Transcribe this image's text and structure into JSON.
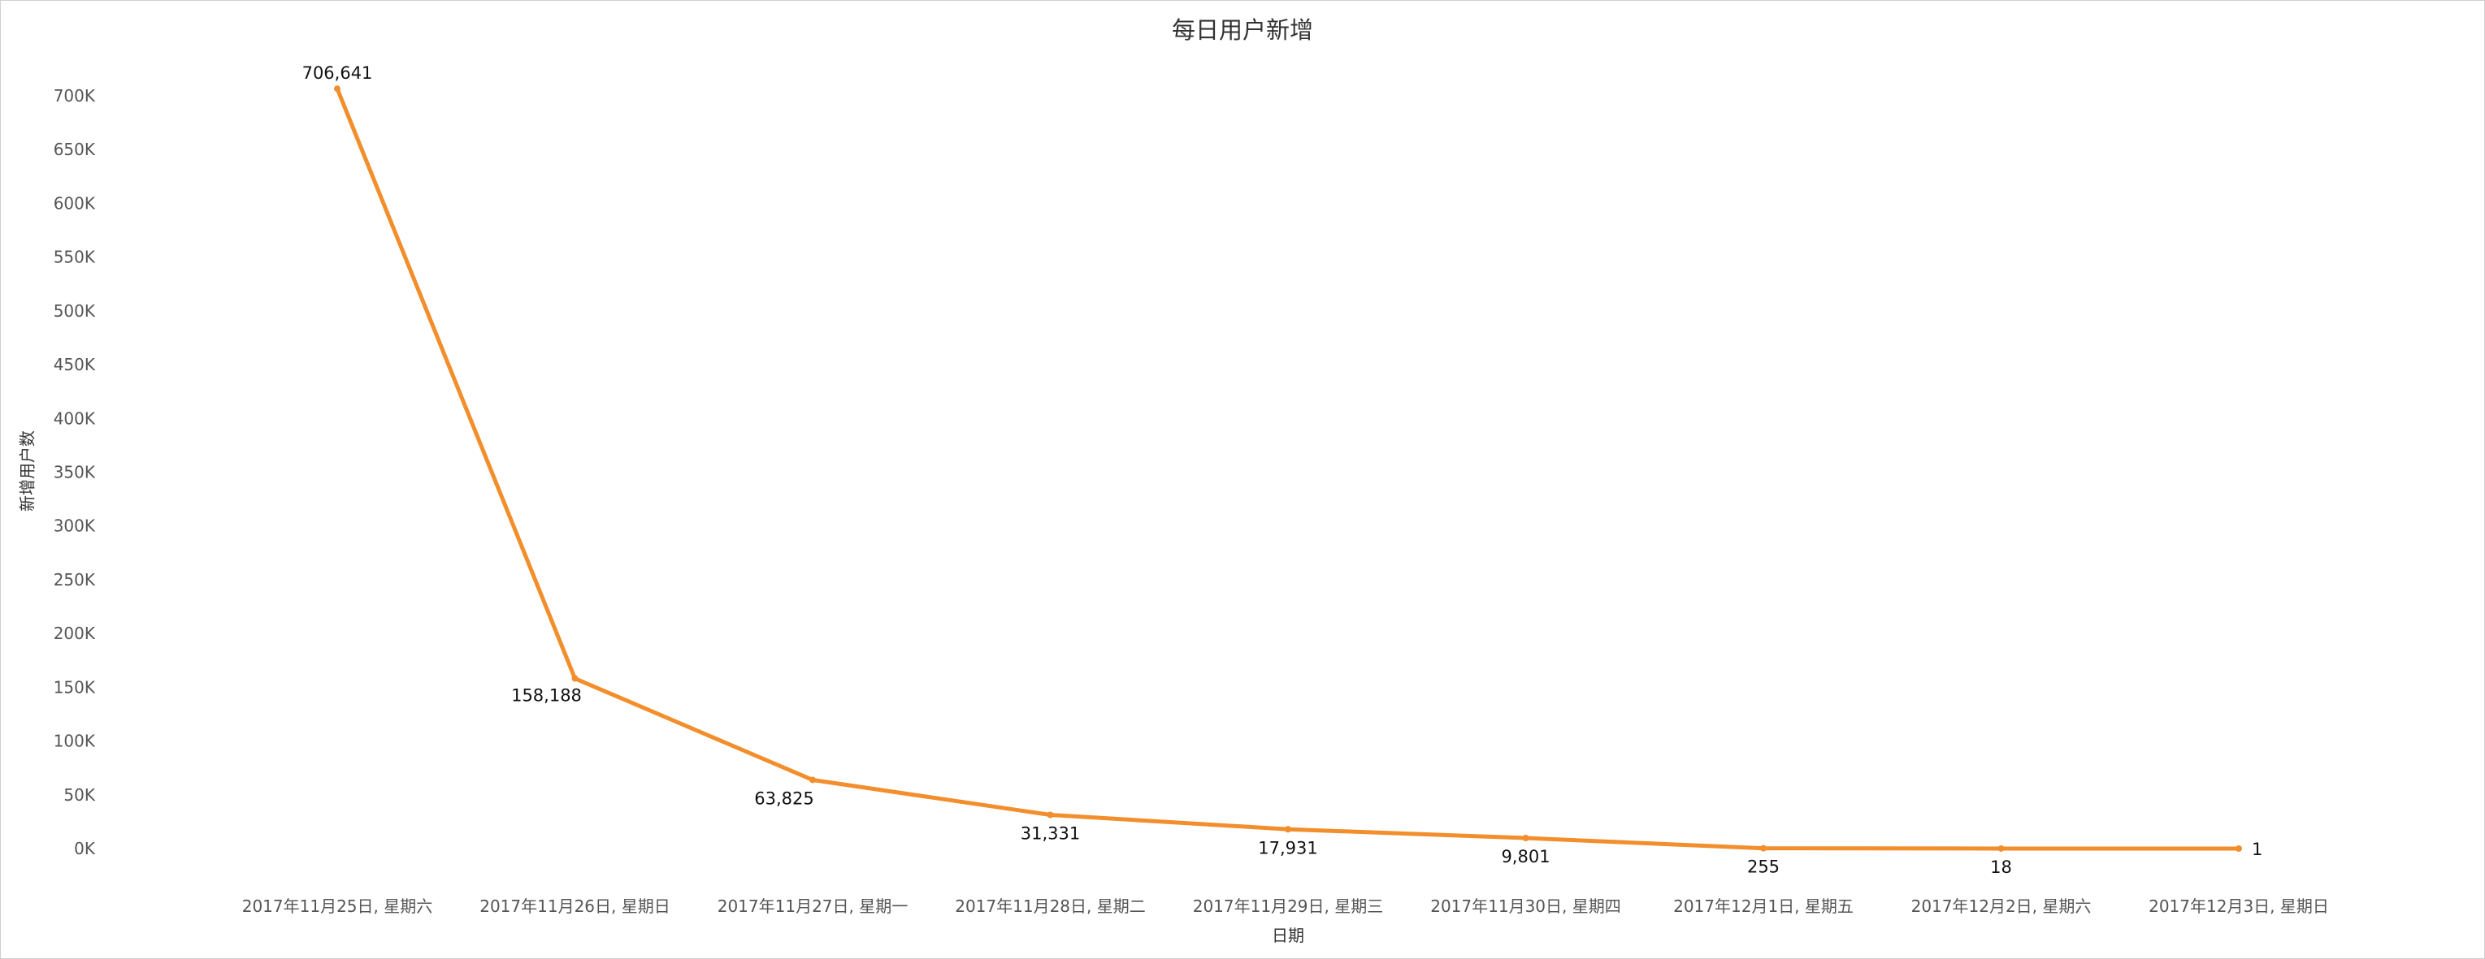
{
  "chart_data": {
    "type": "line",
    "title": "每日用户新增",
    "xlabel": "日期",
    "ylabel": "新增用户数",
    "categories": [
      "2017年11月25日, 星期六",
      "2017年11月26日, 星期日",
      "2017年11月27日, 星期一",
      "2017年11月28日, 星期二",
      "2017年11月29日, 星期三",
      "2017年11月30日, 星期四",
      "2017年12月1日, 星期五",
      "2017年12月2日, 星期六",
      "2017年12月3日, 星期日"
    ],
    "series": [
      {
        "values": [
          706641,
          158188,
          63825,
          31331,
          17931,
          9801,
          255,
          18,
          1
        ],
        "color": "#F28E2B"
      }
    ],
    "data_labels": [
      "706,641",
      "158,188",
      "63,825",
      "31,331",
      "17,931",
      "9,801",
      "255",
      "18",
      "1"
    ],
    "ylim": [
      0,
      700000
    ],
    "yticks": [
      0,
      50000,
      100000,
      150000,
      200000,
      250000,
      300000,
      350000,
      400000,
      450000,
      500000,
      550000,
      600000,
      650000,
      700000
    ],
    "ytick_labels": [
      "0K",
      "50K",
      "100K",
      "150K",
      "200K",
      "250K",
      "300K",
      "350K",
      "400K",
      "450K",
      "500K",
      "550K",
      "600K",
      "650K",
      "700K"
    ],
    "grid": false,
    "legend": "none"
  }
}
